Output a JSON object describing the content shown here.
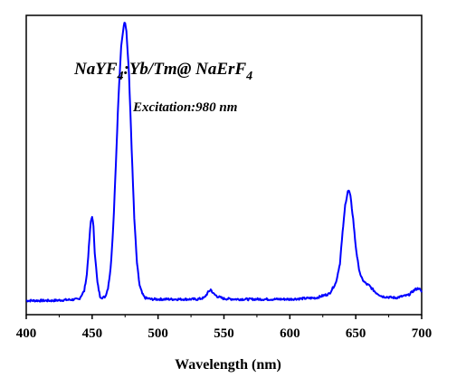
{
  "chart_data": {
    "type": "line",
    "title": "",
    "xlabel": "Wavelength (nm)",
    "ylabel": "",
    "xlim": [
      400,
      700
    ],
    "ylim": [
      0,
      1.08
    ],
    "xticks": [
      "400",
      "450",
      "500",
      "550",
      "600",
      "650",
      "700"
    ],
    "grid": false,
    "line_color": "#0000ff",
    "annotations": {
      "formula": {
        "base": "NaYF",
        "sub1": "4",
        "mid": ":Yb/Tm@ NaErF",
        "sub2": "4"
      },
      "excitation": "Excitation:980 nm"
    },
    "series": [
      {
        "x": [
          400,
          420,
          440,
          444,
          446,
          448,
          449,
          450,
          451,
          452,
          454,
          456,
          458,
          460,
          462,
          464,
          466,
          468,
          470,
          472,
          474,
          475,
          476,
          478,
          480,
          482,
          484,
          486,
          488,
          490,
          495,
          500,
          510,
          520,
          530,
          535,
          538,
          540,
          542,
          545,
          550,
          560,
          580,
          600,
          620,
          630,
          635,
          638,
          640,
          642,
          644,
          645,
          646,
          648,
          650,
          652,
          654,
          656,
          658,
          660,
          662,
          665,
          670,
          680,
          690,
          695,
          698,
          700
        ],
        "y": [
          0.005,
          0.005,
          0.01,
          0.04,
          0.1,
          0.23,
          0.29,
          0.31,
          0.27,
          0.18,
          0.07,
          0.02,
          0.015,
          0.02,
          0.05,
          0.12,
          0.27,
          0.5,
          0.74,
          0.92,
          1.0,
          1.01,
          0.98,
          0.82,
          0.55,
          0.3,
          0.14,
          0.06,
          0.03,
          0.015,
          0.01,
          0.01,
          0.01,
          0.01,
          0.01,
          0.015,
          0.035,
          0.045,
          0.03,
          0.02,
          0.012,
          0.01,
          0.01,
          0.01,
          0.015,
          0.03,
          0.07,
          0.14,
          0.25,
          0.35,
          0.4,
          0.4,
          0.38,
          0.3,
          0.2,
          0.13,
          0.09,
          0.075,
          0.065,
          0.06,
          0.05,
          0.035,
          0.02,
          0.015,
          0.025,
          0.045,
          0.05,
          0.035
        ]
      }
    ]
  }
}
